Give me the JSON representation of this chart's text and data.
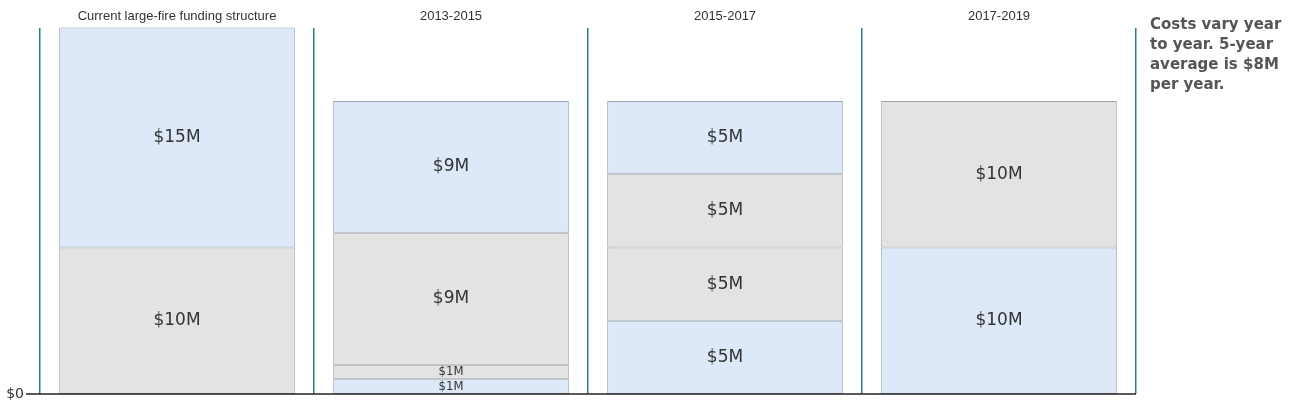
{
  "chart_data": {
    "type": "bar",
    "stacked": true,
    "categories": [
      "Current large-fire funding structure",
      "2013-2015",
      "2015-2017",
      "2017-2019"
    ],
    "series": [
      {
        "color": "#dde9f8",
        "values": [
          null,
          1,
          5,
          10
        ],
        "value_labels": [
          null,
          "$1M",
          "$5M",
          "$10M"
        ]
      },
      {
        "color": "#e3e3e3",
        "values": [
          10,
          1,
          5,
          10
        ],
        "value_labels": [
          "$10M",
          "$1M",
          "$5M",
          "$10M"
        ]
      },
      {
        "color": "#e3e3e3",
        "values": [
          null,
          9,
          5,
          null
        ],
        "value_labels": [
          null,
          "$9M",
          "$5M",
          null
        ]
      },
      {
        "color": "#dde9f8",
        "values": [
          15,
          9,
          5,
          null
        ],
        "value_labels": [
          "$15M",
          "$9M",
          "$5M",
          null
        ]
      }
    ],
    "ref_lines": [
      {
        "axis": "y",
        "value": 0,
        "label": "$0",
        "color": "#222222"
      }
    ],
    "grid": "x",
    "legend": false,
    "annotations": [
      "Costs vary year to year. 5-year average is $8M per year."
    ]
  }
}
